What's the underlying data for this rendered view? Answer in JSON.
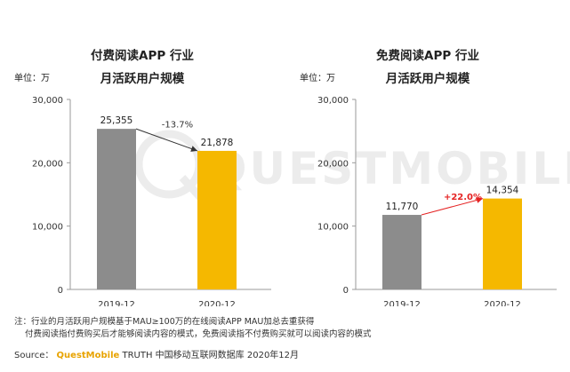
{
  "watermark": "QUESTMOBILE",
  "charts": [
    {
      "title_line1": "付费阅读APP 行业",
      "title_line2": "月活跃用户规模",
      "unit": "单位：万",
      "change_label": "-13.7%",
      "colors": {
        "bar_2019": "#8c8c8c",
        "bar_2020": "#f5b800",
        "arrow": "#333333",
        "change_label": "#333333"
      }
    },
    {
      "title_line1": "免费阅读APP 行业",
      "title_line2": "月活跃用户规模",
      "unit": "单位：万",
      "change_label": "+22.0%",
      "colors": {
        "bar_2019": "#8c8c8c",
        "bar_2020": "#f5b800",
        "arrow": "#e52222",
        "change_label": "#e52222"
      }
    }
  ],
  "chart_data": [
    {
      "type": "bar",
      "title": "付费阅读APP 行业 月活跃用户规模",
      "ylabel": "单位：万",
      "categories": [
        "2019-12",
        "2020-12"
      ],
      "values": [
        25355,
        21878
      ],
      "value_labels": [
        "25,355",
        "21,878"
      ],
      "ylim": [
        0,
        30000
      ],
      "yticks": [
        0,
        10000,
        20000,
        30000
      ],
      "ytick_labels": [
        "0",
        "10,000",
        "20,000",
        "30,000"
      ],
      "annotation": "-13.7%"
    },
    {
      "type": "bar",
      "title": "免费阅读APP 行业 月活跃用户规模",
      "ylabel": "单位：万",
      "categories": [
        "2019-12",
        "2020-12"
      ],
      "values": [
        11770,
        14354
      ],
      "value_labels": [
        "11,770",
        "14,354"
      ],
      "ylim": [
        0,
        30000
      ],
      "yticks": [
        0,
        10000,
        20000,
        30000
      ],
      "ytick_labels": [
        "0",
        "10,000",
        "20,000",
        "30,000"
      ],
      "annotation": "+22.0%"
    }
  ],
  "footnote": {
    "line1": "注：行业的月活跃用户规模基于MAU≥100万的在线阅读APP MAU加总去重获得",
    "line2": "付费阅读指付费购买后才能够阅读内容的模式，免费阅读指不付费购买就可以阅读内容的模式"
  },
  "source": {
    "prefix": "Source：",
    "brand": "QuestMobile",
    "suffix": "TRUTH 中国移动互联网数据库 2020年12月"
  }
}
